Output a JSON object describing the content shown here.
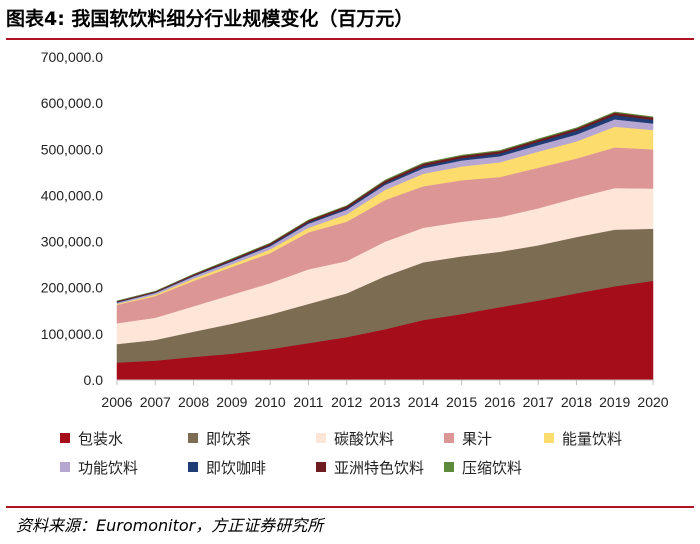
{
  "figure": {
    "title": "图表4:   我国软饮料细分行业规模变化（百万元）",
    "source": "资料来源：Euromonitor，方正证券研究所"
  },
  "chart_data": {
    "type": "area",
    "stacked": true,
    "title": "我国软饮料细分行业规模变化（百万元）",
    "xlabel": "",
    "ylabel": "",
    "ylim": [
      0,
      700000
    ],
    "yticks": [
      "0.0",
      "100,000.0",
      "200,000.0",
      "300,000.0",
      "400,000.0",
      "500,000.0",
      "600,000.0",
      "700,000.0"
    ],
    "categories": [
      "2006",
      "2007",
      "2008",
      "2009",
      "2010",
      "2011",
      "2012",
      "2013",
      "2014",
      "2015",
      "2016",
      "2017",
      "2018",
      "2019",
      "2020"
    ],
    "series": [
      {
        "name": "包装水",
        "color": "#a50d1b",
        "values": [
          38000,
          42000,
          50000,
          57000,
          67000,
          80000,
          93000,
          110000,
          130000,
          143000,
          158000,
          172000,
          188000,
          203000,
          215000
        ]
      },
      {
        "name": "即饮茶",
        "color": "#7b6c52",
        "values": [
          40000,
          45000,
          55000,
          65000,
          75000,
          85000,
          95000,
          115000,
          125000,
          125000,
          120000,
          120000,
          122000,
          123000,
          113000
        ]
      },
      {
        "name": "碳酸饮料",
        "color": "#fde5d8",
        "values": [
          45000,
          48000,
          55000,
          63000,
          68000,
          75000,
          70000,
          75000,
          75000,
          75000,
          75000,
          80000,
          85000,
          90000,
          87000
        ]
      },
      {
        "name": "果汁",
        "color": "#dc9696",
        "values": [
          40000,
          47000,
          55000,
          60000,
          65000,
          80000,
          85000,
          90000,
          90000,
          90000,
          87000,
          88000,
          85000,
          88000,
          85000
        ]
      },
      {
        "name": "能量饮料",
        "color": "#fddc6e",
        "values": [
          2000,
          3000,
          5000,
          6000,
          8000,
          10000,
          16000,
          22000,
          27000,
          30000,
          32000,
          35000,
          37000,
          45000,
          42000
        ]
      },
      {
        "name": "功能饮料",
        "color": "#b5a6d2",
        "values": [
          3000,
          4000,
          5000,
          6000,
          7000,
          9000,
          10000,
          11000,
          12000,
          13000,
          13000,
          14000,
          15000,
          16000,
          14000
        ]
      },
      {
        "name": "即饮咖啡",
        "color": "#1f3d74",
        "values": [
          1000,
          1000,
          1500,
          2000,
          2500,
          3000,
          3500,
          4000,
          5000,
          5000,
          6000,
          7000,
          8000,
          9000,
          8000
        ]
      },
      {
        "name": "亚洲特色饮料",
        "color": "#6e1c20",
        "values": [
          2000,
          2000,
          2500,
          3000,
          3500,
          4000,
          4500,
          5000,
          5000,
          5000,
          5000,
          5000,
          5000,
          5500,
          5000
        ]
      },
      {
        "name": "压缩饮料",
        "color": "#5e8a3c",
        "values": [
          500,
          500,
          500,
          1000,
          1000,
          1000,
          1000,
          1500,
          1500,
          1500,
          1500,
          1500,
          1500,
          1500,
          1500
        ]
      }
    ]
  }
}
